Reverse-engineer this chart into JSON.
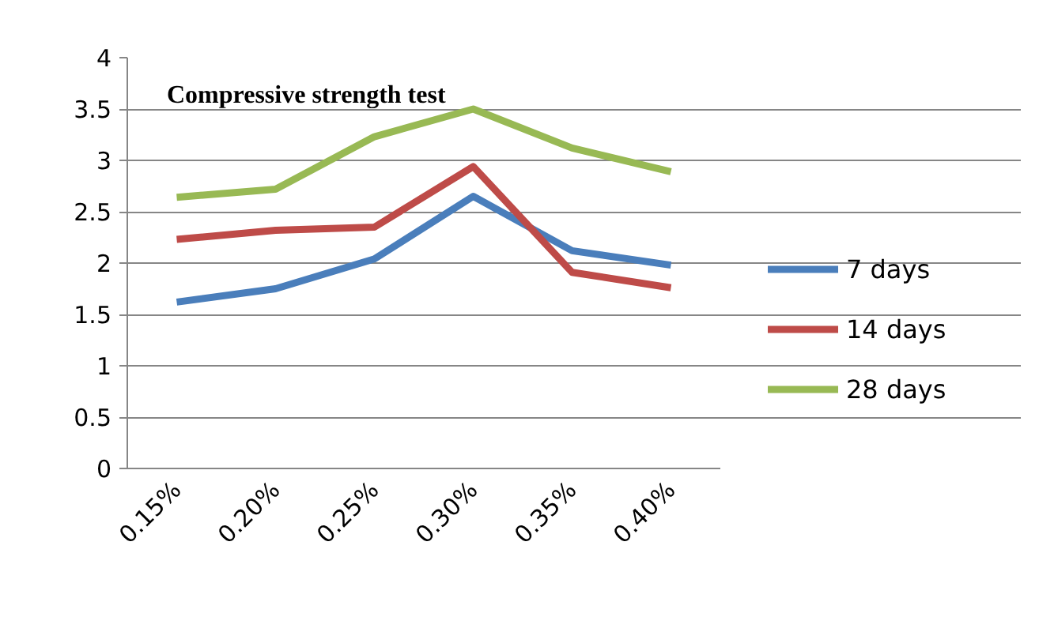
{
  "chart_data": {
    "type": "line",
    "title": "Compressive strength test",
    "categories": [
      "0.15%",
      "0.20%",
      "0.25%",
      "0.30%",
      "0.35%",
      "0.40%"
    ],
    "series": [
      {
        "name": "7 days",
        "color": "#4a7ebb",
        "values": [
          1.62,
          1.75,
          2.04,
          2.65,
          2.12,
          1.98
        ]
      },
      {
        "name": "14 days",
        "color": "#be4b48",
        "values": [
          2.23,
          2.32,
          2.35,
          2.94,
          1.91,
          1.76
        ]
      },
      {
        "name": "28 days",
        "color": "#98b954",
        "values": [
          2.64,
          2.72,
          3.23,
          3.5,
          3.12,
          2.89
        ]
      }
    ],
    "ylim": [
      0,
      4
    ],
    "yticks": [
      0,
      0.5,
      1,
      1.5,
      2,
      2.5,
      3,
      3.5,
      4
    ],
    "grid": "y",
    "legend": "right",
    "marker": "none",
    "line_style": "solid"
  }
}
